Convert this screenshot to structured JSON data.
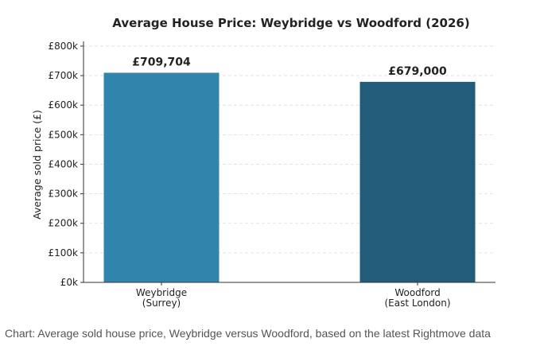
{
  "chart_data": {
    "type": "bar",
    "title": "Average House Price: Weybridge vs Woodford (2026)",
    "y_label": "Average sold price (£)",
    "categories": [
      [
        "Weybridge",
        "(Surrey)"
      ],
      [
        "Woodford",
        "(East London)"
      ]
    ],
    "values": [
      709704,
      679000
    ],
    "value_labels": [
      "£709,704",
      "£679,000"
    ],
    "colors": [
      "#3185ac",
      "#215d7b"
    ],
    "ylim": [
      0,
      816000
    ],
    "yticks": [
      {
        "value": 0,
        "label": "£0k"
      },
      {
        "value": 100000,
        "label": "£100k"
      },
      {
        "value": 200000,
        "label": "£200k"
      },
      {
        "value": 300000,
        "label": "£300k"
      },
      {
        "value": 400000,
        "label": "£400k"
      },
      {
        "value": 500000,
        "label": "£500k"
      },
      {
        "value": 600000,
        "label": "£600k"
      },
      {
        "value": 700000,
        "label": "£700k"
      },
      {
        "value": 800000,
        "label": "£800k"
      }
    ],
    "grid": true
  },
  "caption": "Chart: Average sold house price, Weybridge versus Woodford, based on the latest Rightmove data"
}
